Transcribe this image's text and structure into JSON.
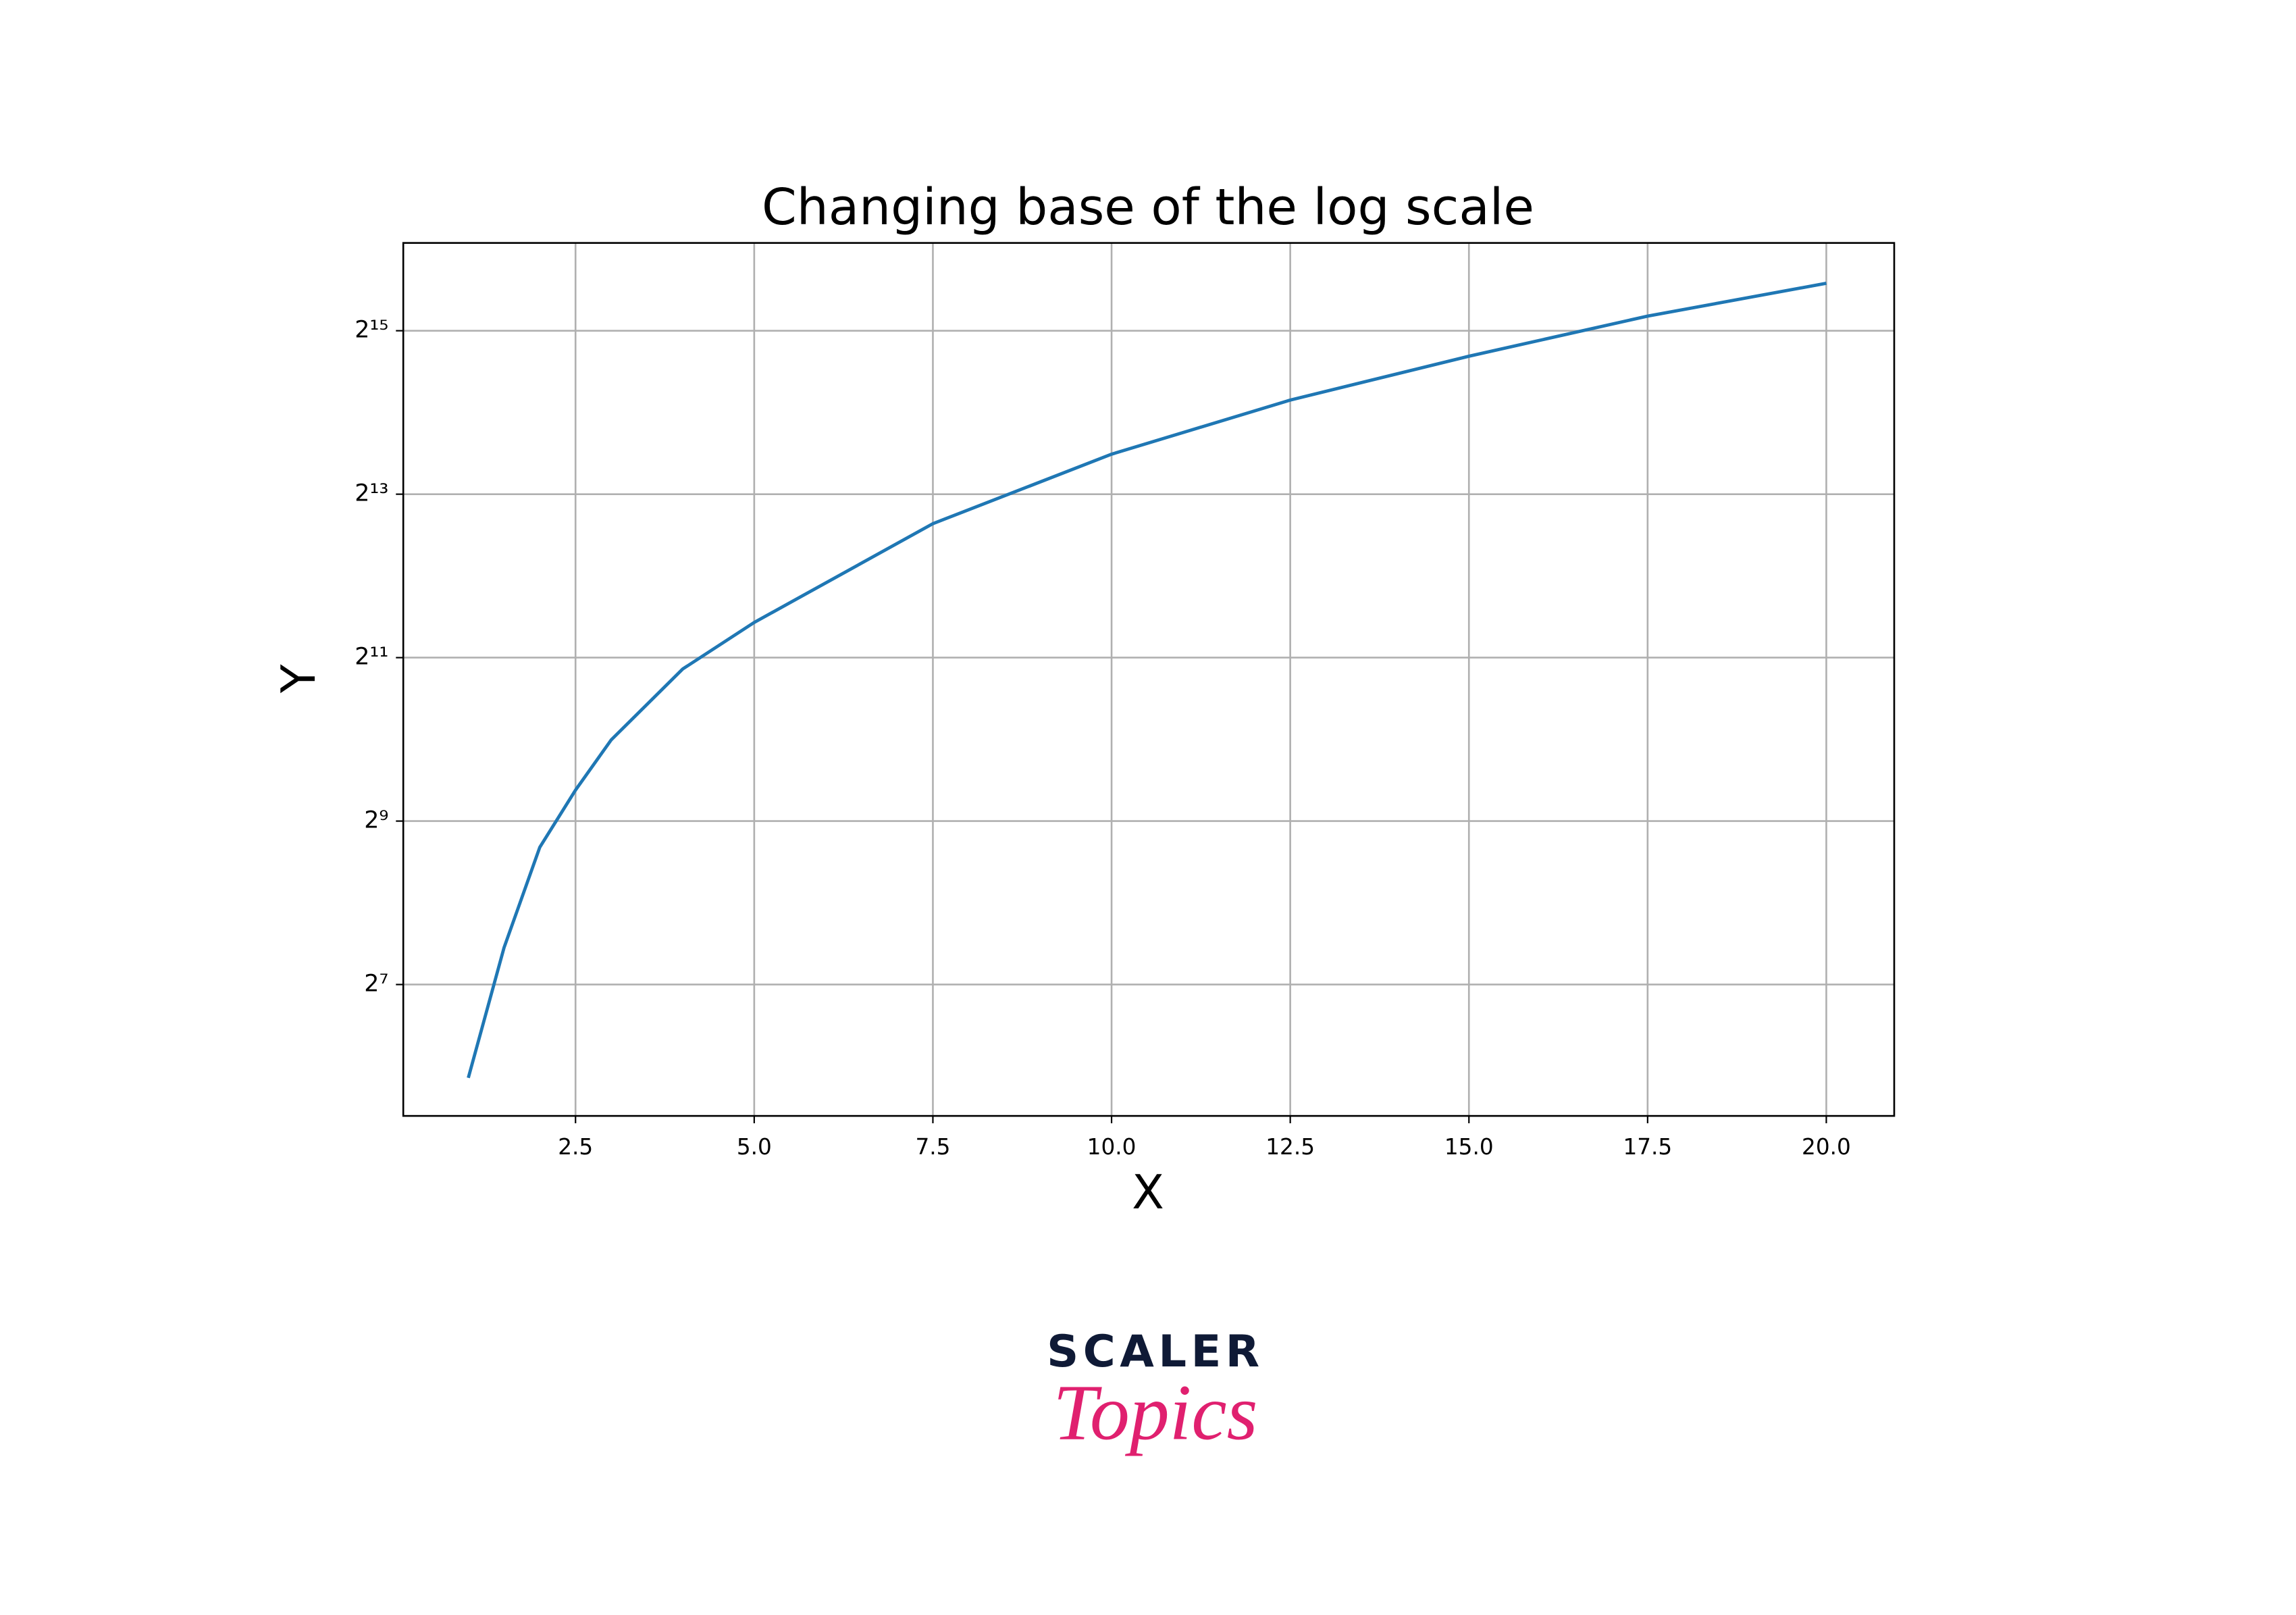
{
  "chart_data": {
    "type": "line",
    "title": "Changing base of the log scale",
    "xlabel": "X",
    "ylabel": "Y",
    "x": [
      1,
      1.5,
      2,
      2.5,
      3,
      4,
      5,
      7.5,
      10,
      12.5,
      15,
      17.5,
      20
    ],
    "series": [
      {
        "color": "#1f77b4",
        "values": [
          58,
          175,
          410,
          666,
          1020,
          1860,
          2760,
          6380,
          11500,
          18200,
          26400,
          37100,
          49000
        ]
      }
    ],
    "xlim": [
      0.09,
      20.95
    ],
    "xticks": [
      2.5,
      {
        "value": 5,
        "label": "5.0"
      },
      7.5,
      {
        "value": 10,
        "label": "10.0"
      },
      12.5,
      {
        "value": 15,
        "label": "15.0"
      },
      17.5,
      {
        "value": 20,
        "label": "20.0"
      }
    ],
    "ylim": [
      42,
      69000
    ],
    "yscale": "log",
    "ybase": 2,
    "yticks": [
      {
        "value": 128,
        "label": "2⁷"
      },
      {
        "value": 512,
        "label": "2⁹"
      },
      {
        "value": 2048,
        "label": "2¹¹"
      },
      {
        "value": 8192,
        "label": "2¹³"
      },
      {
        "value": 32768,
        "label": "2¹⁵"
      }
    ],
    "grid": true
  },
  "logo": {
    "line1": "SCALER",
    "line2": "Topics"
  }
}
